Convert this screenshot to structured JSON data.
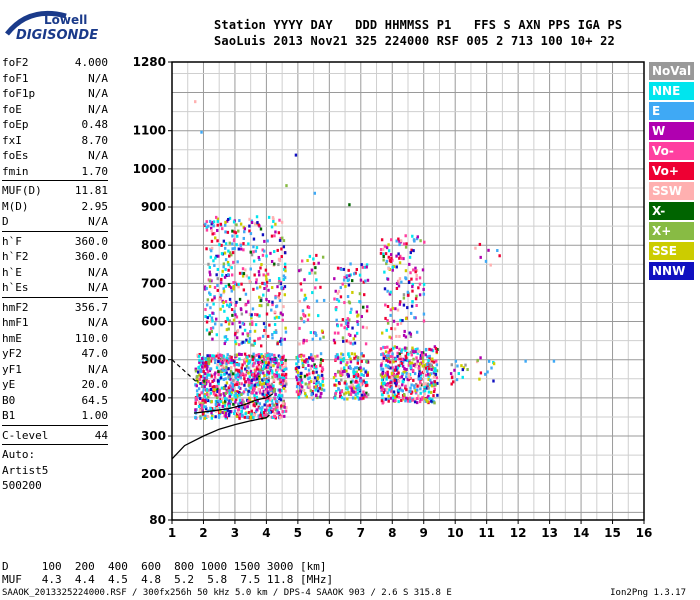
{
  "logo": {
    "line1": "Lowell",
    "line2": "DIGISONDE"
  },
  "header": {
    "line1": "Station YYYY DAY   DDD HHMMSS P1   FFS S AXN PPS IGA PS",
    "line2": "SaoLuis 2013 Nov21 325 224000 RSF 005 2 713 100 10+ 22"
  },
  "params": {
    "group1": [
      {
        "label": "foF2",
        "value": "4.000"
      },
      {
        "label": "foF1",
        "value": "N/A"
      },
      {
        "label": "foF1p",
        "value": "N/A"
      },
      {
        "label": "foE",
        "value": "N/A"
      },
      {
        "label": "foEp",
        "value": "0.48"
      },
      {
        "label": "fxI",
        "value": "8.70"
      },
      {
        "label": "foEs",
        "value": "N/A"
      },
      {
        "label": "fmin",
        "value": "1.70"
      }
    ],
    "group2": [
      {
        "label": "MUF(D)",
        "value": "11.81"
      },
      {
        "label": "M(D)",
        "value": "2.95"
      },
      {
        "label": "D",
        "value": "N/A"
      }
    ],
    "group3": [
      {
        "label": "h`F",
        "value": "360.0"
      },
      {
        "label": "h`F2",
        "value": "360.0"
      },
      {
        "label": "h`E",
        "value": "N/A"
      },
      {
        "label": "h`Es",
        "value": "N/A"
      }
    ],
    "group4": [
      {
        "label": "hmF2",
        "value": "356.7"
      },
      {
        "label": "hmF1",
        "value": "N/A"
      },
      {
        "label": "hmE",
        "value": "110.0"
      },
      {
        "label": "yF2",
        "value": "47.0"
      },
      {
        "label": "yF1",
        "value": "N/A"
      },
      {
        "label": "yE",
        "value": "20.0"
      },
      {
        "label": "B0",
        "value": "64.5"
      },
      {
        "label": "B1",
        "value": "1.00"
      }
    ],
    "clevel": {
      "label": "C-level",
      "value": "44"
    },
    "auto_lines": [
      "Auto:",
      "Artist5",
      "500200"
    ]
  },
  "legend": [
    {
      "label": "NoVal",
      "color": "#999999"
    },
    {
      "label": "NNE",
      "color": "#00e5ee"
    },
    {
      "label": "E",
      "color": "#3fa9f5"
    },
    {
      "label": "W",
      "color": "#b000b0"
    },
    {
      "label": "Vo-",
      "color": "#ff3fa0"
    },
    {
      "label": "Vo+",
      "color": "#ee0033"
    },
    {
      "label": "SSW",
      "color": "#ffb0b0"
    },
    {
      "label": "X-",
      "color": "#006400"
    },
    {
      "label": "X+",
      "color": "#88bb44"
    },
    {
      "label": "SSE",
      "color": "#cccc00"
    },
    {
      "label": "NNW",
      "color": "#1010c0"
    }
  ],
  "bottom": {
    "line_d": "D     100  200  400  600  800 1000 1500 3000 [km]",
    "line_muf": "MUF   4.3  4.4  4.5  4.8  5.2  5.8  7.5 11.8 [MHz]"
  },
  "footer": {
    "left": "SAAOK_2013325224000.RSF / 300fx256h 50 kHz 5.0 km / DPS-4 SAAOK 903 / 2.6 S 315.8 E",
    "right": "Ion2Png 1.3.17"
  },
  "chart_data": {
    "type": "scatter",
    "xlim": [
      1,
      16
    ],
    "ylim": [
      80,
      1280
    ],
    "xticks": [
      1,
      2,
      3,
      4,
      5,
      6,
      7,
      8,
      9,
      10,
      11,
      12,
      13,
      14,
      15,
      16
    ],
    "yticks": [
      80,
      200,
      300,
      400,
      500,
      600,
      700,
      800,
      900,
      1000,
      1100,
      1280
    ],
    "grid": true,
    "clusters": [
      {
        "x": [
          1.7,
          4.6
        ],
        "y": [
          350,
          520
        ],
        "density": 1.0
      },
      {
        "x": [
          4.9,
          5.8
        ],
        "y": [
          400,
          520
        ],
        "density": 0.7
      },
      {
        "x": [
          6.1,
          7.2
        ],
        "y": [
          400,
          520
        ],
        "density": 0.7
      },
      {
        "x": [
          7.6,
          9.4
        ],
        "y": [
          390,
          540
        ],
        "density": 0.8
      },
      {
        "x": [
          9.8,
          11.2
        ],
        "y": [
          440,
          510
        ],
        "density": 0.15
      },
      {
        "x": [
          2.0,
          4.6
        ],
        "y": [
          540,
          880
        ],
        "density": 0.25
      },
      {
        "x": [
          5.0,
          5.8
        ],
        "y": [
          540,
          780
        ],
        "density": 0.15
      },
      {
        "x": [
          6.1,
          7.2
        ],
        "y": [
          540,
          760
        ],
        "density": 0.2
      },
      {
        "x": [
          7.6,
          9.0
        ],
        "y": [
          560,
          830
        ],
        "density": 0.2
      },
      {
        "x": [
          10.5,
          11.5
        ],
        "y": [
          740,
          810
        ],
        "density": 0.05
      }
    ],
    "trace_lower": [
      [
        1.0,
        240
      ],
      [
        1.4,
        275
      ],
      [
        2.0,
        300
      ],
      [
        2.5,
        318
      ],
      [
        3.0,
        330
      ],
      [
        3.5,
        340
      ],
      [
        4.0,
        348
      ],
      [
        4.1,
        355
      ]
    ],
    "trace_upper": [
      [
        1.7,
        360
      ],
      [
        2.2,
        365
      ],
      [
        2.8,
        372
      ],
      [
        3.3,
        382
      ],
      [
        3.7,
        395
      ],
      [
        4.0,
        400
      ],
      [
        4.2,
        410
      ]
    ],
    "trace_dashed": [
      [
        1.0,
        500
      ],
      [
        1.4,
        470
      ],
      [
        1.8,
        440
      ]
    ]
  }
}
